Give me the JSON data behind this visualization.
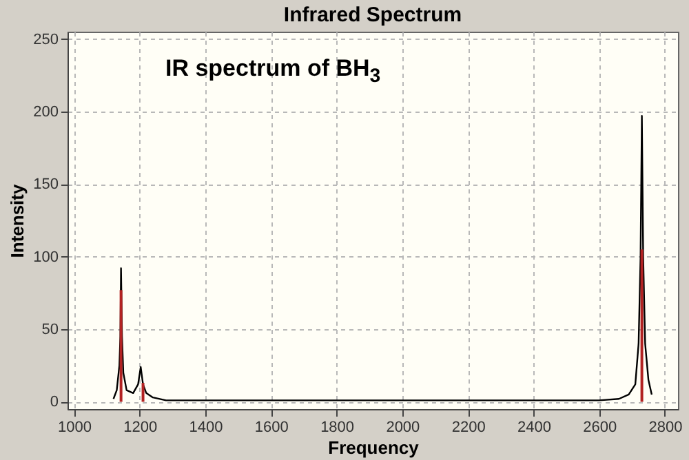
{
  "chart_data": {
    "type": "line",
    "title": "Infrared Spectrum",
    "xlabel": "Frequency",
    "ylabel": "Intensity",
    "annotations": [
      "IR spectrum of BH$_{3}$"
    ],
    "xlim": [
      980,
      2840
    ],
    "ylim": [
      -5,
      255
    ],
    "xticks": [
      1000,
      1200,
      1400,
      1600,
      1800,
      2000,
      2200,
      2400,
      2600,
      2800
    ],
    "yticks": [
      0,
      50,
      100,
      150,
      200,
      250
    ],
    "grid": true,
    "series": [
      {
        "color": "#000000",
        "x": [
          1120,
          1130,
          1138,
          1141,
          1143,
          1146,
          1150,
          1160,
          1180,
          1195,
          1203,
          1210,
          1220,
          1240,
          1280,
          2000,
          2600,
          2660,
          2690,
          2710,
          2720,
          2726,
          2730,
          2734,
          2740,
          2750,
          2760
        ],
        "values": [
          2,
          8,
          25,
          45,
          92,
          45,
          20,
          8,
          6,
          12,
          24,
          12,
          6,
          3,
          1,
          1,
          1,
          2,
          5,
          12,
          40,
          100,
          197,
          100,
          40,
          15,
          5
        ]
      },
      {
        "type": "bar",
        "color": "#b22222",
        "x": [
          1143,
          1210,
          2730
        ],
        "values": [
          77,
          13,
          105
        ]
      }
    ]
  }
}
